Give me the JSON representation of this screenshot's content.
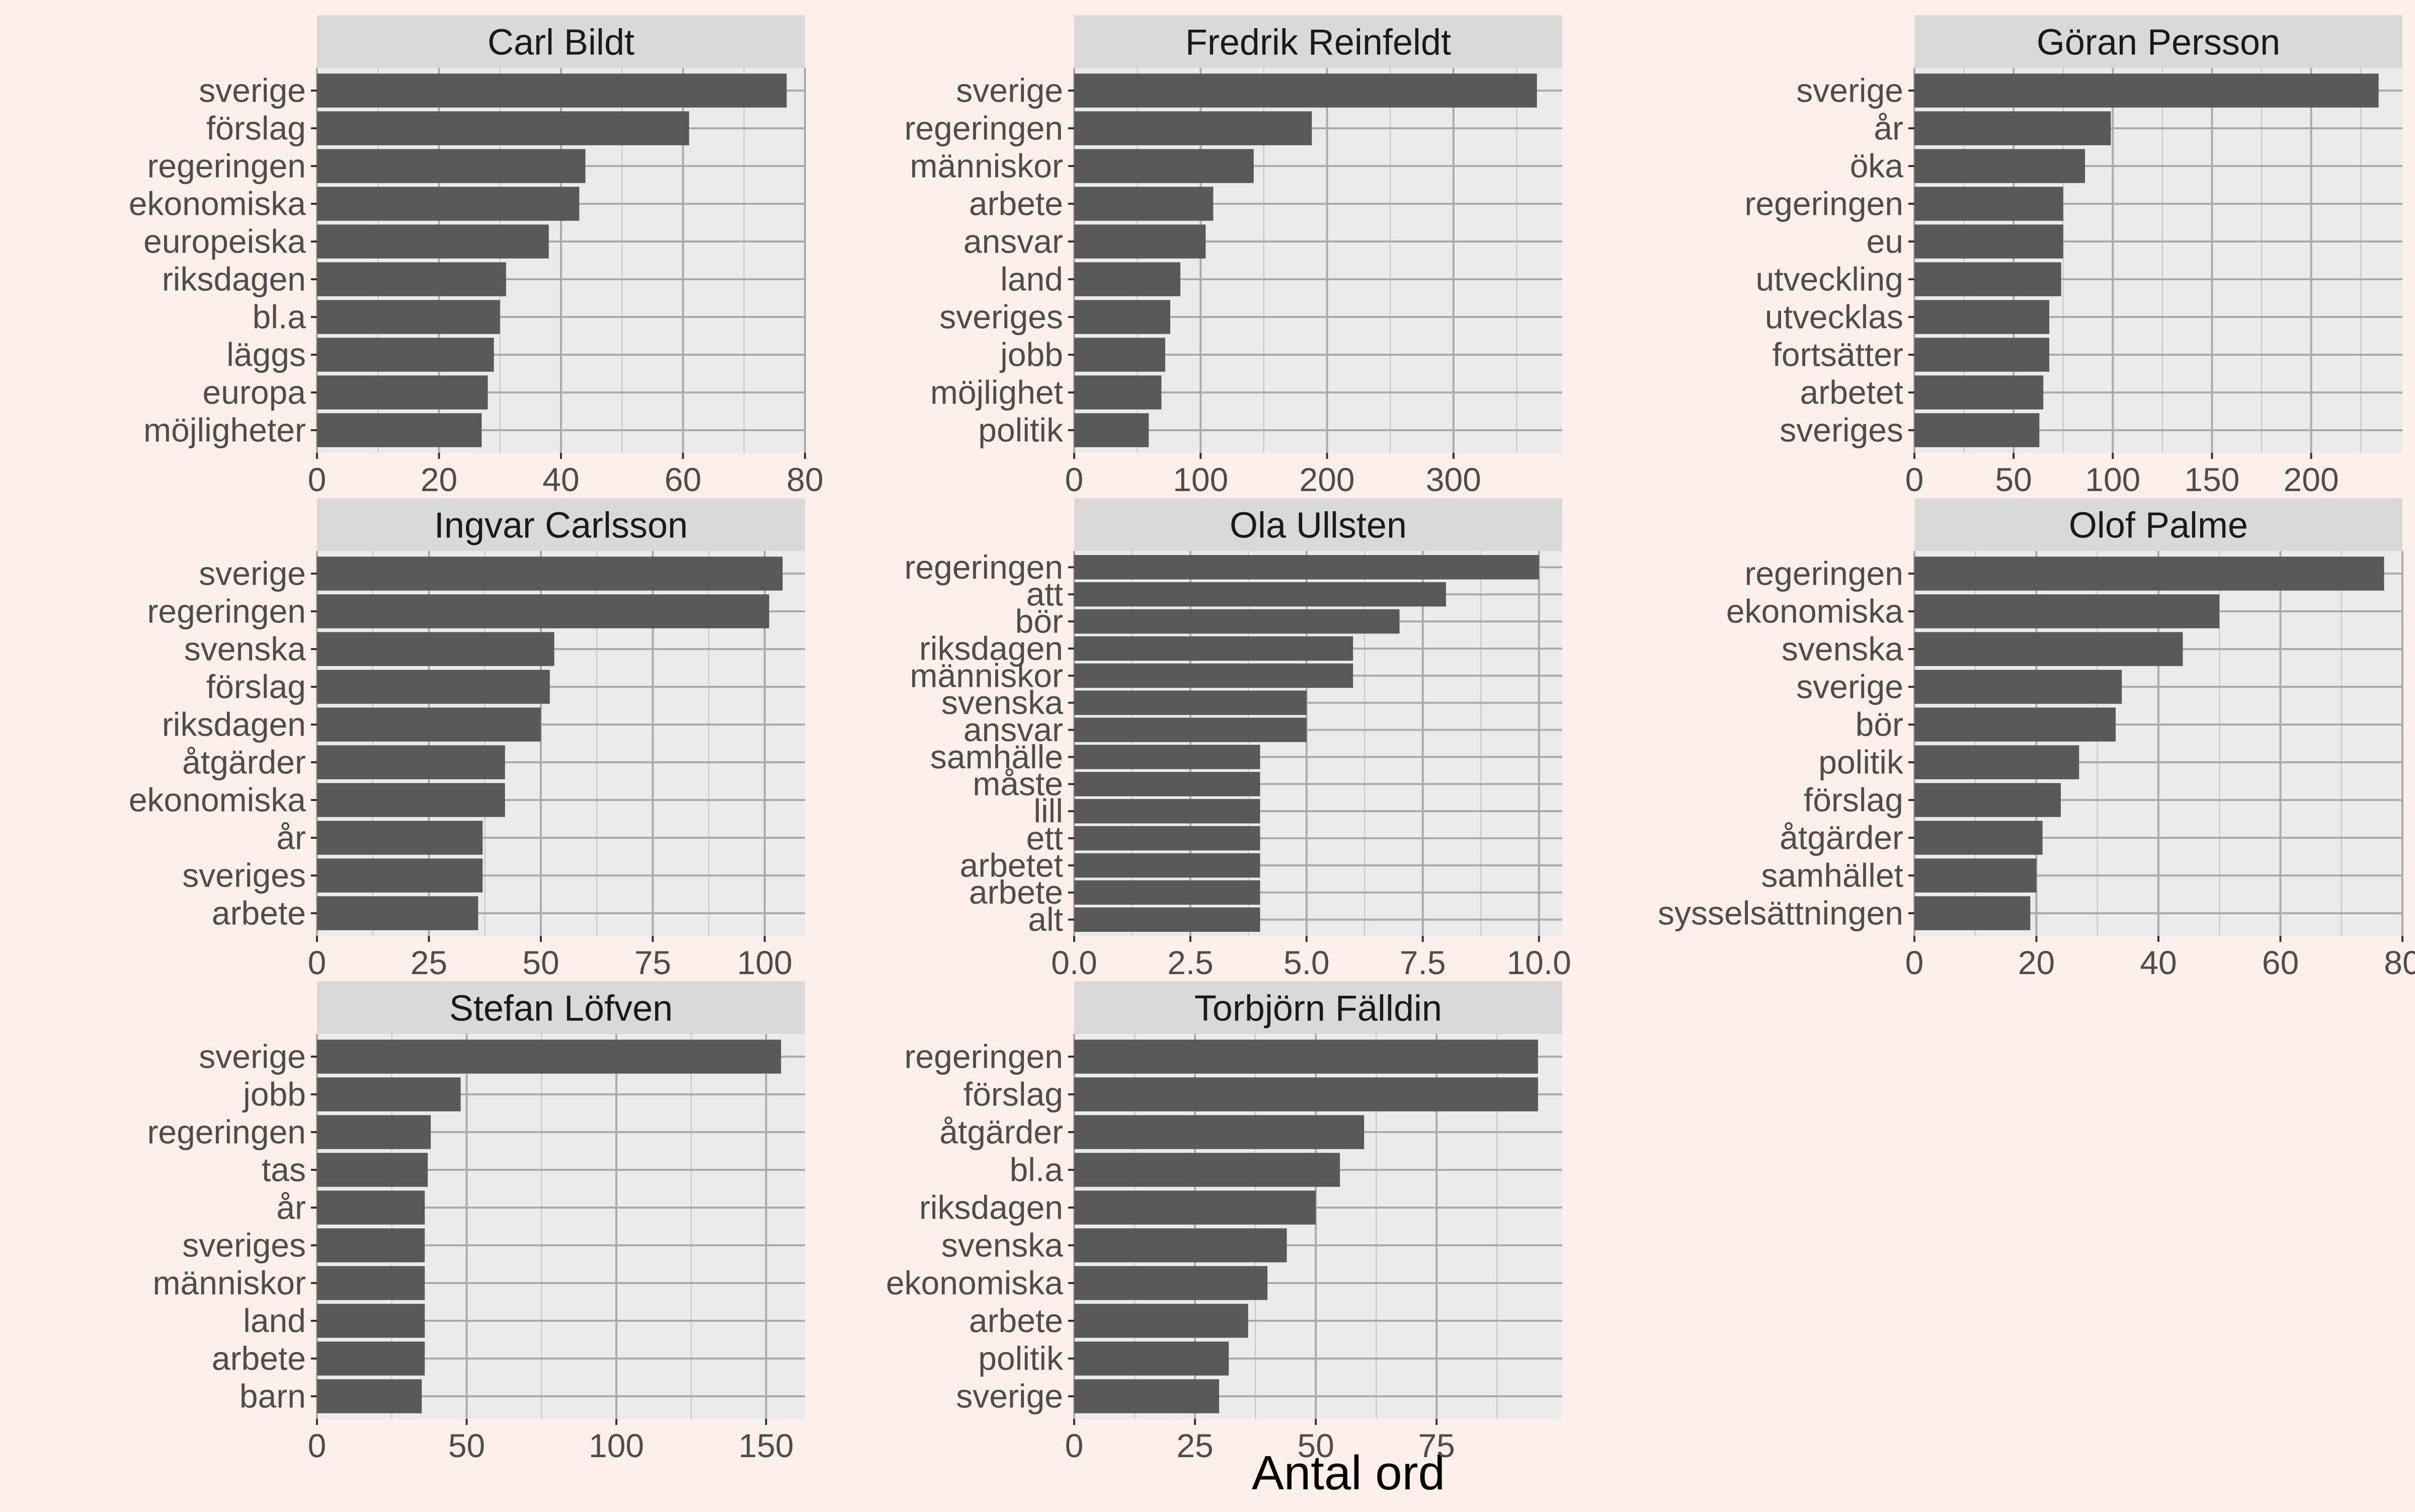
{
  "chart_data": {
    "type": "bar",
    "orientation": "horizontal",
    "facet_layout": "3 columns x 3 rows, free scales",
    "xlabel": "Antal ord",
    "colors": {
      "bar": "#595959",
      "panel": "#ebebeb",
      "strip": "#d9d9d9",
      "grid": "#ababab",
      "background": "#fdf0ea"
    },
    "panels": [
      {
        "title": "Carl Bildt",
        "categories": [
          "sverige",
          "förslag",
          "regeringen",
          "ekonomiska",
          "europeiska",
          "riksdagen",
          "bl.a",
          "läggs",
          "europa",
          "möjligheter"
        ],
        "values": [
          77,
          61,
          44,
          43,
          38,
          31,
          30,
          29,
          28,
          27
        ],
        "xlim": [
          0,
          80
        ],
        "ticks": [
          0,
          20,
          40,
          60,
          80
        ],
        "tick_labels": [
          "0",
          "20",
          "40",
          "60",
          "80"
        ]
      },
      {
        "title": "Fredrik Reinfeldt",
        "categories": [
          "sverige",
          "regeringen",
          "människor",
          "arbete",
          "ansvar",
          "land",
          "sveriges",
          "jobb",
          "möjlighet",
          "politik"
        ],
        "values": [
          366,
          188,
          142,
          110,
          104,
          84,
          76,
          72,
          69,
          59
        ],
        "xlim": [
          0,
          386
        ],
        "ticks": [
          0,
          100,
          200,
          300
        ],
        "tick_labels": [
          "0",
          "100",
          "200",
          "300"
        ]
      },
      {
        "title": "Göran Persson",
        "categories": [
          "sverige",
          "år",
          "öka",
          "regeringen",
          "eu",
          "utveckling",
          "utvecklas",
          "fortsätter",
          "arbetet",
          "sveriges"
        ],
        "values": [
          234,
          99,
          86,
          75,
          75,
          74,
          68,
          68,
          65,
          63
        ],
        "xlim": [
          0,
          246
        ],
        "ticks": [
          0,
          50,
          100,
          150,
          200
        ],
        "tick_labels": [
          "0",
          "50",
          "100",
          "150",
          "200"
        ]
      },
      {
        "title": "Ingvar Carlsson",
        "categories": [
          "sverige",
          "regeringen",
          "svenska",
          "förslag",
          "riksdagen",
          "åtgärder",
          "ekonomiska",
          "år",
          "sveriges",
          "arbete"
        ],
        "values": [
          104,
          101,
          53,
          52,
          50,
          42,
          42,
          37,
          37,
          36
        ],
        "xlim": [
          0,
          109
        ],
        "ticks": [
          0,
          25,
          50,
          75,
          100
        ],
        "tick_labels": [
          "0",
          "25",
          "50",
          "75",
          "100"
        ]
      },
      {
        "title": "Ola Ullsten",
        "categories": [
          "regeringen",
          "att",
          "bör",
          "riksdagen",
          "människor",
          "svenska",
          "ansvar",
          "samhälle",
          "måste",
          "lill",
          "ett",
          "arbetet",
          "arbete",
          "alt"
        ],
        "values": [
          10,
          8,
          7,
          6,
          6,
          5,
          5,
          4,
          4,
          4,
          4,
          4,
          4,
          4
        ],
        "xlim": [
          0,
          10.5
        ],
        "ticks": [
          0,
          2.5,
          5,
          7.5,
          10
        ],
        "tick_labels": [
          "0.0",
          "2.5",
          "5.0",
          "7.5",
          "10.0"
        ]
      },
      {
        "title": "Olof Palme",
        "categories": [
          "regeringen",
          "ekonomiska",
          "svenska",
          "sverige",
          "bör",
          "politik",
          "förslag",
          "åtgärder",
          "samhället",
          "sysselsättningen"
        ],
        "values": [
          77,
          50,
          44,
          34,
          33,
          27,
          24,
          21,
          20,
          19
        ],
        "xlim": [
          0,
          80
        ],
        "ticks": [
          0,
          20,
          40,
          60,
          80
        ],
        "tick_labels": [
          "0",
          "20",
          "40",
          "60",
          "80"
        ]
      },
      {
        "title": "Stefan Löfven",
        "categories": [
          "sverige",
          "jobb",
          "regeringen",
          "tas",
          "år",
          "sveriges",
          "människor",
          "land",
          "arbete",
          "barn"
        ],
        "values": [
          155,
          48,
          38,
          37,
          36,
          36,
          36,
          36,
          36,
          35
        ],
        "xlim": [
          0,
          163
        ],
        "ticks": [
          0,
          50,
          100,
          150
        ],
        "tick_labels": [
          "0",
          "50",
          "100",
          "150"
        ]
      },
      {
        "title": "Torbjörn Fälldin",
        "categories": [
          "regeringen",
          "förslag",
          "åtgärder",
          "bl.a",
          "riksdagen",
          "svenska",
          "ekonomiska",
          "arbete",
          "politik",
          "sverige"
        ],
        "values": [
          96,
          96,
          60,
          55,
          50,
          44,
          40,
          36,
          32,
          30
        ],
        "xlim": [
          0,
          101
        ],
        "ticks": [
          0,
          25,
          50,
          75
        ],
        "tick_labels": [
          "0",
          "25",
          "50",
          "75"
        ]
      }
    ]
  }
}
